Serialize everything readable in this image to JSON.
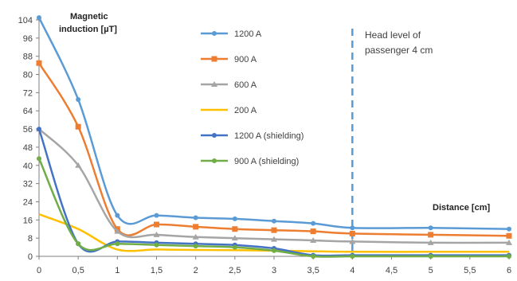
{
  "chart_data": {
    "type": "line",
    "ylabel_line1": "Magnetic",
    "ylabel_line2": "induction [µT]",
    "xlabel": "Distance [cm]",
    "x": [
      0,
      0.5,
      1,
      1.5,
      2,
      2.5,
      3,
      3.5,
      4,
      5,
      6
    ],
    "xticks": [
      "0",
      "0,5",
      "1",
      "1,5",
      "2",
      "2,5",
      "3",
      "3,5",
      "4",
      "4,5",
      "5",
      "5,5",
      "6"
    ],
    "xtick_values": [
      0,
      0.5,
      1,
      1.5,
      2,
      2.5,
      3,
      3.5,
      4,
      4.5,
      5,
      5.5,
      6
    ],
    "yticks": [
      0,
      8,
      16,
      24,
      32,
      40,
      48,
      56,
      64,
      72,
      80,
      88,
      96,
      104
    ],
    "xlim": [
      0,
      6
    ],
    "ylim": [
      0,
      104
    ],
    "grid": false,
    "legend_position": "top-center",
    "series": [
      {
        "name": "1200 A",
        "color": "#5b9bd5",
        "marker": "circle",
        "values": [
          105,
          69,
          18,
          18,
          17,
          16.5,
          15.5,
          14.5,
          12.5,
          12.5,
          12
        ]
      },
      {
        "name": "900 A",
        "color": "#ed7d31",
        "marker": "square",
        "values": [
          85,
          57,
          12,
          14,
          13,
          12,
          11.5,
          11,
          10,
          9.5,
          9
        ]
      },
      {
        "name": "600 A",
        "color": "#a5a5a5",
        "marker": "triangle",
        "values": [
          56,
          40,
          11,
          9.5,
          8.5,
          8,
          7.5,
          7,
          6.5,
          6,
          6
        ]
      },
      {
        "name": "200 A",
        "color": "#ffc000",
        "marker": "none",
        "values": [
          18.5,
          12,
          3,
          3,
          2.8,
          2.7,
          2.5,
          2.2,
          2,
          2,
          2
        ]
      },
      {
        "name": "1200 A (shielding)",
        "color": "#4472c4",
        "marker": "circle",
        "values": [
          56,
          5.5,
          6.5,
          6,
          5.5,
          5,
          3.5,
          0.5,
          0.5,
          0.5,
          0.5
        ]
      },
      {
        "name": "900 A (shielding)",
        "color": "#70ad47",
        "marker": "circle",
        "values": [
          43,
          5.5,
          5.5,
          5,
          4.5,
          4,
          2.5,
          0,
          0,
          0,
          0
        ]
      }
    ],
    "annotation": {
      "x": 4,
      "text_line1": "Head level of",
      "text_line2": "passenger 4 cm",
      "color": "#5b9bd5"
    }
  }
}
